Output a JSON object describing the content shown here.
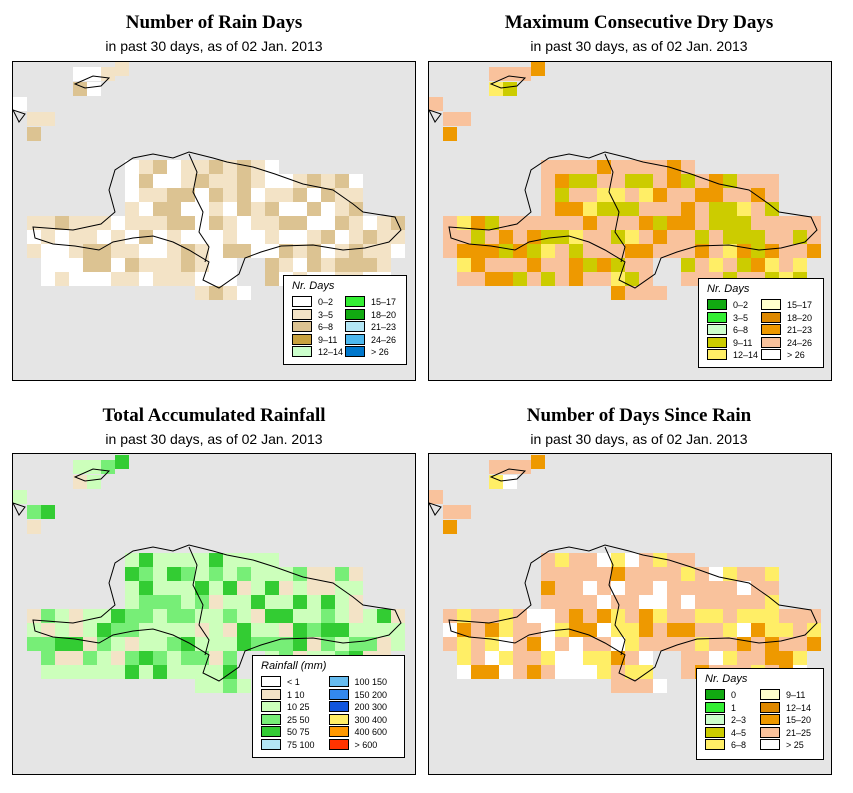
{
  "panels": [
    {
      "title": "Number of Rain Days",
      "subtitle": "in past 30 days, as of  02 Jan. 2013",
      "legend": {
        "title": "Nr. Days",
        "items": [
          {
            "label": "0–2",
            "color": "#ffffff"
          },
          {
            "label": "3–5",
            "color": "#f3e3c6"
          },
          {
            "label": "6–8",
            "color": "#dcc392"
          },
          {
            "label": "9–11",
            "color": "#c9a23f"
          },
          {
            "label": "12–14",
            "color": "#ccffcc"
          },
          {
            "label": "15–17",
            "color": "#33ee33"
          },
          {
            "label": "18–20",
            "color": "#11aa11"
          },
          {
            "label": "21–23",
            "color": "#b3e6f5"
          },
          {
            "label": "24–26",
            "color": "#4db8ee"
          },
          {
            "label": "> 26",
            "color": "#0077cc"
          }
        ]
      }
    },
    {
      "title": "Maximum Consecutive Dry Days",
      "subtitle": "in past 30 days, as of  02 Jan. 2013",
      "legend": {
        "title": "Nr. Days",
        "items": [
          {
            "label": "0–2",
            "color": "#11aa11"
          },
          {
            "label": "3–5",
            "color": "#33ee33"
          },
          {
            "label": "6–8",
            "color": "#ccffcc"
          },
          {
            "label": "9–11",
            "color": "#cccc00"
          },
          {
            "label": "12–14",
            "color": "#ffee66"
          },
          {
            "label": "15–17",
            "color": "#ffffcc"
          },
          {
            "label": "18–20",
            "color": "#dd8800"
          },
          {
            "label": "21–23",
            "color": "#ee9900"
          },
          {
            "label": "24–26",
            "color": "#f9c29c"
          },
          {
            "label": "> 26",
            "color": "#ffffff"
          }
        ]
      }
    },
    {
      "title": "Total Accumulated Rainfall",
      "subtitle": "in past 30 days, as of  02 Jan. 2013",
      "legend": {
        "title": "Rainfall (mm)",
        "items": [
          {
            "label": "< 1",
            "color": "#ffffff"
          },
          {
            "label": "1    10",
            "color": "#f3e3c6"
          },
          {
            "label": "10    25",
            "color": "#ccffbb"
          },
          {
            "label": "25    50",
            "color": "#77ee77"
          },
          {
            "label": "50    75",
            "color": "#33cc33"
          },
          {
            "label": "75  100",
            "color": "#b3e6f5"
          },
          {
            "label": "100  150",
            "color": "#66bbee"
          },
          {
            "label": "150  200",
            "color": "#3388ee"
          },
          {
            "label": "200  300",
            "color": "#1155dd"
          },
          {
            "label": "300  400",
            "color": "#ffee66"
          },
          {
            "label": "400  600",
            "color": "#ff9900"
          },
          {
            "label": "> 600",
            "color": "#ff3300"
          }
        ]
      }
    },
    {
      "title": "Number of Days Since Rain",
      "subtitle": "in past 30 days, as of  02 Jan. 2013",
      "legend": {
        "title": "Nr. Days",
        "items": [
          {
            "label": "0",
            "color": "#11aa11"
          },
          {
            "label": "1",
            "color": "#33ee33"
          },
          {
            "label": "2–3",
            "color": "#ccffcc"
          },
          {
            "label": "4–5",
            "color": "#cccc00"
          },
          {
            "label": "6–8",
            "color": "#ffee66"
          },
          {
            "label": "9–11",
            "color": "#ffffcc"
          },
          {
            "label": "12–14",
            "color": "#dd8800"
          },
          {
            "label": "15–20",
            "color": "#ee9900"
          },
          {
            "label": "21–25",
            "color": "#f9c29c"
          },
          {
            "label": "> 25",
            "color": "#ffffff"
          }
        ]
      }
    }
  ]
}
